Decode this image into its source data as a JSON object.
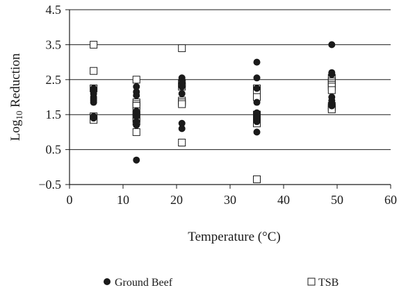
{
  "chart_data": {
    "type": "scatter",
    "xlabel": "Temperature (°C)",
    "ylabel_main": "Log",
    "ylabel_sub": "10",
    "ylabel_rest": " Reduction",
    "xlim": [
      0,
      60
    ],
    "ylim": [
      -0.5,
      4.5
    ],
    "xticks": [
      0,
      10,
      20,
      30,
      40,
      50,
      60
    ],
    "yticks": [
      -0.5,
      0.5,
      1.5,
      2.5,
      3.5,
      4.5
    ],
    "ytick_labels": [
      "−0.5",
      "0.5",
      "1.5",
      "2.5",
      "3.5",
      "4.5"
    ],
    "grid": "horizontal",
    "legend_position": "bottom",
    "series": [
      {
        "name": "Ground Beef",
        "marker": "filled-circle",
        "color": "#1a1a1a",
        "points": [
          [
            4.5,
            2.25
          ],
          [
            4.5,
            2.2
          ],
          [
            4.5,
            2.1
          ],
          [
            4.5,
            2.0
          ],
          [
            4.5,
            1.95
          ],
          [
            4.5,
            1.9
          ],
          [
            4.5,
            1.85
          ],
          [
            4.5,
            1.45
          ],
          [
            4.5,
            1.4
          ],
          [
            12.5,
            2.3
          ],
          [
            12.5,
            2.15
          ],
          [
            12.5,
            2.05
          ],
          [
            12.5,
            1.6
          ],
          [
            12.5,
            1.55
          ],
          [
            12.5,
            1.5
          ],
          [
            12.5,
            1.45
          ],
          [
            12.5,
            1.3
          ],
          [
            12.5,
            1.2
          ],
          [
            12.5,
            0.2
          ],
          [
            21,
            2.55
          ],
          [
            21,
            2.5
          ],
          [
            21,
            2.4
          ],
          [
            21,
            2.3
          ],
          [
            21,
            2.1
          ],
          [
            21,
            1.25
          ],
          [
            21,
            1.1
          ],
          [
            35,
            3.0
          ],
          [
            35,
            2.55
          ],
          [
            35,
            2.25
          ],
          [
            35,
            1.85
          ],
          [
            35,
            1.55
          ],
          [
            35,
            1.45
          ],
          [
            35,
            1.4
          ],
          [
            35,
            1.35
          ],
          [
            35,
            1.3
          ],
          [
            35,
            1.0
          ],
          [
            49,
            3.5
          ],
          [
            49,
            2.7
          ],
          [
            49,
            2.65
          ],
          [
            49,
            2.0
          ],
          [
            49,
            1.9
          ],
          [
            49,
            1.8
          ],
          [
            49,
            1.75
          ]
        ]
      },
      {
        "name": "TSB",
        "marker": "open-square",
        "color": "#1a1a1a",
        "points": [
          [
            4.5,
            3.5
          ],
          [
            4.5,
            2.75
          ],
          [
            4.5,
            2.25
          ],
          [
            4.5,
            1.45
          ],
          [
            4.5,
            1.35
          ],
          [
            12.5,
            2.5
          ],
          [
            12.5,
            1.85
          ],
          [
            12.5,
            1.8
          ],
          [
            12.5,
            1.75
          ],
          [
            12.5,
            1.6
          ],
          [
            12.5,
            1.5
          ],
          [
            12.5,
            1.4
          ],
          [
            12.5,
            1.3
          ],
          [
            12.5,
            1.0
          ],
          [
            21,
            3.4
          ],
          [
            21,
            2.4
          ],
          [
            21,
            2.3
          ],
          [
            21,
            1.9
          ],
          [
            21,
            1.85
          ],
          [
            21,
            1.8
          ],
          [
            21,
            0.7
          ],
          [
            35,
            2.25
          ],
          [
            35,
            2.2
          ],
          [
            35,
            2.0
          ],
          [
            35,
            1.5
          ],
          [
            35,
            1.4
          ],
          [
            35,
            1.35
          ],
          [
            35,
            1.3
          ],
          [
            35,
            1.25
          ],
          [
            35,
            -0.35
          ],
          [
            49,
            2.55
          ],
          [
            49,
            2.45
          ],
          [
            49,
            2.4
          ],
          [
            49,
            2.35
          ],
          [
            49,
            2.3
          ],
          [
            49,
            2.2
          ],
          [
            49,
            1.75
          ],
          [
            49,
            1.7
          ],
          [
            49,
            1.65
          ]
        ]
      }
    ]
  }
}
